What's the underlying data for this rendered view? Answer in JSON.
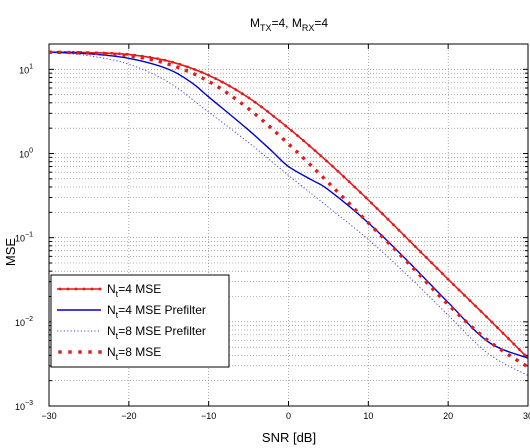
{
  "chart_data": {
    "type": "line",
    "title_main": "M",
    "title_sub1": "TX",
    "title_mid": "=4, M",
    "title_sub2": "RX",
    "title_end": "=4",
    "xlabel": "SNR [dB]",
    "ylabel": "MSE",
    "xlim": [
      -30,
      30
    ],
    "ylim": [
      0.001,
      20
    ],
    "yscale": "log",
    "grid": true,
    "legend_position": "lower-left",
    "x_ticks": [
      -30,
      -20,
      -10,
      0,
      10,
      20,
      30
    ],
    "x_tick_labels": [
      "−30",
      "−20",
      "−10",
      "0",
      "10",
      "20",
      "30"
    ],
    "y_ticks": [
      0.001,
      0.01,
      0.1,
      1,
      10
    ],
    "y_tick_labels": [
      {
        "base": "10",
        "exp": "−3"
      },
      {
        "base": "10",
        "exp": "−2"
      },
      {
        "base": "10",
        "exp": "−1"
      },
      {
        "base": "10",
        "exp": "0"
      },
      {
        "base": "10",
        "exp": "1"
      }
    ],
    "series": [
      {
        "name_main": "N",
        "name_sub": "t",
        "name_rest": "=4 MSE",
        "color": "#e41a1c",
        "style": "solid-square",
        "x": [
          -30,
          -25,
          -20,
          -15,
          -10,
          -5,
          0,
          5,
          10,
          15,
          20,
          25,
          30
        ],
        "y": [
          16,
          15.8,
          15,
          12.5,
          8.5,
          4.6,
          2.0,
          0.78,
          0.28,
          0.095,
          0.032,
          0.011,
          0.0037
        ]
      },
      {
        "name_main": "N",
        "name_sub": "t",
        "name_rest": "=4 MSE Prefilter",
        "color": "#0000cc",
        "style": "solid",
        "x": [
          -30,
          -25,
          -20,
          -15,
          -12,
          -10,
          -5,
          -2,
          0,
          3,
          5,
          10,
          15,
          20,
          25,
          30
        ],
        "y": [
          16,
          15.3,
          13.5,
          10,
          6.8,
          4.7,
          1.9,
          1.05,
          0.7,
          0.48,
          0.37,
          0.15,
          0.052,
          0.017,
          0.0058,
          0.0037
        ]
      },
      {
        "name_main": "N",
        "name_sub": "t",
        "name_rest": "=8 MSE Prefilter",
        "color": "#4444dd",
        "style": "dotted",
        "x": [
          -30,
          -25,
          -20,
          -15,
          -10,
          -5,
          0,
          5,
          10,
          15,
          20,
          25,
          30
        ],
        "y": [
          16,
          14.5,
          11.5,
          7,
          3.1,
          1.35,
          0.55,
          0.23,
          0.095,
          0.035,
          0.012,
          0.0042,
          0.0023
        ]
      },
      {
        "name_main": "N",
        "name_sub": "t",
        "name_rest": "=8 MSE",
        "color": "#e41a1c",
        "style": "dotted-square",
        "x": [
          -30,
          -25,
          -20,
          -15,
          -10,
          -5,
          0,
          5,
          10,
          15,
          20,
          25,
          30
        ],
        "y": [
          16,
          15.6,
          14.5,
          11.5,
          7.2,
          3.4,
          1.3,
          0.45,
          0.15,
          0.05,
          0.016,
          0.006,
          0.0029
        ]
      }
    ]
  }
}
